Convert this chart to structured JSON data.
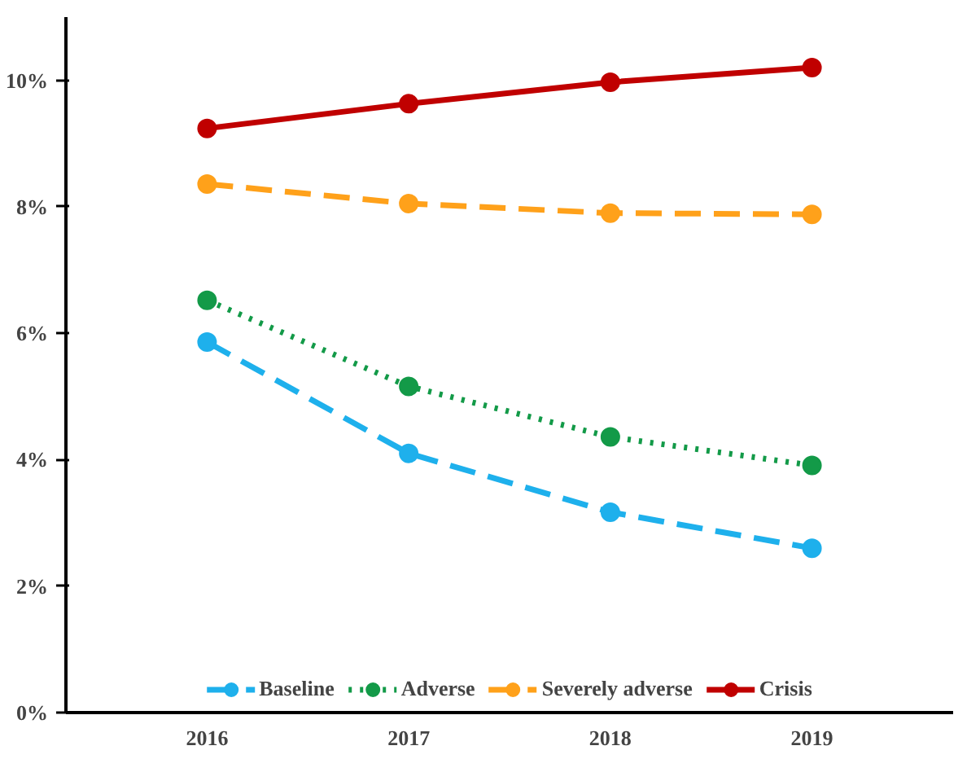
{
  "chart_data": {
    "type": "line",
    "categories": [
      "2016",
      "2017",
      "2018",
      "2019"
    ],
    "ylim": [
      0,
      11
    ],
    "yticks": [
      {
        "value": 0,
        "label": "0%"
      },
      {
        "value": 2,
        "label": "2%"
      },
      {
        "value": 4,
        "label": "4%"
      },
      {
        "value": 6,
        "label": "6%"
      },
      {
        "value": 8,
        "label": "8%"
      },
      {
        "value": 10,
        "label": "10%"
      }
    ],
    "series": [
      {
        "name": "Baseline",
        "color": "#1eb0ec",
        "line_style": "dashed",
        "values": [
          5.86,
          4.1,
          3.17,
          2.6
        ]
      },
      {
        "name": "Adverse",
        "color": "#139a48",
        "line_style": "dotted",
        "values": [
          6.52,
          5.16,
          4.36,
          3.91
        ]
      },
      {
        "name": "Severely adverse",
        "color": "#ffa11a",
        "line_style": "dashed",
        "values": [
          8.36,
          8.05,
          7.9,
          7.88
        ]
      },
      {
        "name": "Crisis",
        "color": "#c00000",
        "line_style": "solid",
        "values": [
          9.24,
          9.63,
          9.97,
          10.2
        ]
      }
    ],
    "marker": "circle",
    "legend": "bottom",
    "grid": false
  }
}
